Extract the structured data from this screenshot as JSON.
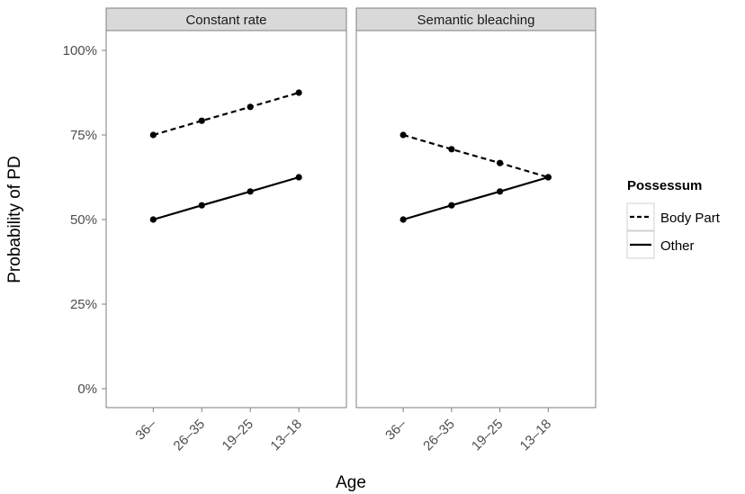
{
  "chart_data": {
    "type": "line",
    "xlabel": "Age",
    "ylabel": "Probability of PD",
    "categories": [
      "36–",
      "26–35",
      "19–25",
      "13–18"
    ],
    "y_ticks": [
      "0%",
      "25%",
      "50%",
      "75%",
      "100%"
    ],
    "ylim": [
      0,
      1
    ],
    "grid": false,
    "legend_position": "right",
    "legend": {
      "title": "Possessum",
      "entries": [
        {
          "label": "Body Part",
          "linetype": "dashed"
        },
        {
          "label": "Other",
          "linetype": "solid"
        }
      ]
    },
    "panels": [
      {
        "title": "Constant rate",
        "series": [
          {
            "name": "Body Part",
            "values": [
              0.75,
              0.792,
              0.833,
              0.875
            ]
          },
          {
            "name": "Other",
            "values": [
              0.5,
              0.542,
              0.583,
              0.625
            ]
          }
        ]
      },
      {
        "title": "Semantic bleaching",
        "series": [
          {
            "name": "Body Part",
            "values": [
              0.75,
              0.708,
              0.667,
              0.625
            ]
          },
          {
            "name": "Other",
            "values": [
              0.5,
              0.542,
              0.583,
              0.625
            ]
          }
        ]
      }
    ]
  }
}
